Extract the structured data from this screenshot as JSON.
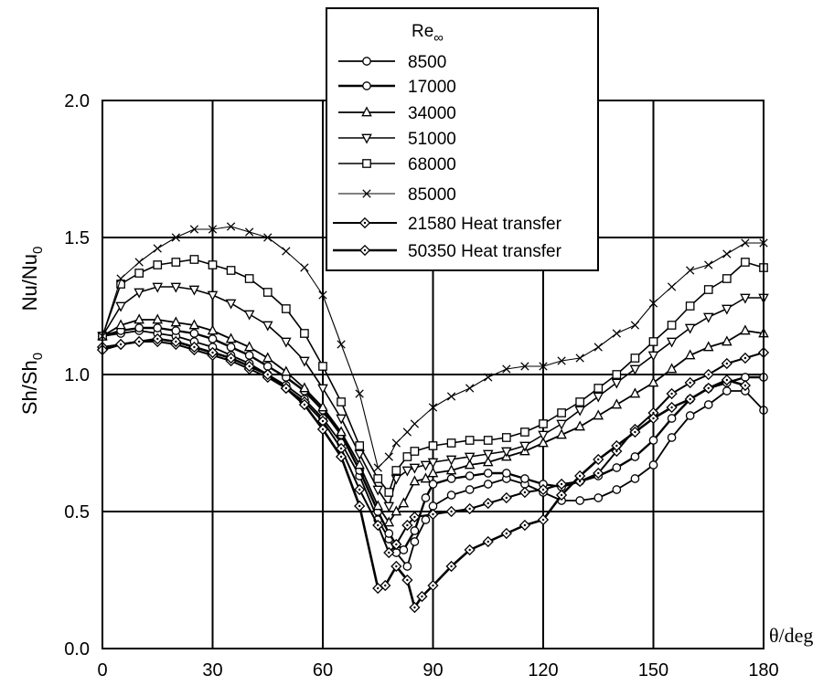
{
  "chart_data": {
    "type": "line",
    "xlabel": "θ/deg",
    "ylabel_left": "Sh/Sh",
    "ylabel_left_sub": "0",
    "ylabel_right": "Nu/Nu",
    "ylabel_right_sub": "0",
    "xlim": [
      0,
      180
    ],
    "ylim": [
      0,
      2
    ],
    "xticks": [
      0,
      30,
      60,
      90,
      120,
      150,
      180
    ],
    "xtick_labels": [
      "0",
      "30",
      "60",
      "90",
      "120",
      "150",
      "180"
    ],
    "yticks": [
      0,
      0.5,
      1.0,
      1.5,
      2.0
    ],
    "ytick_labels": [
      "0.0",
      "0.5",
      "1.0",
      "1.5",
      "2.0"
    ],
    "grid": true,
    "legend": {
      "placement": "top-center",
      "title": "Re",
      "title_sub": "∞"
    },
    "series": [
      {
        "name": "8500",
        "marker": "circle",
        "x": [
          0,
          5,
          10,
          15,
          20,
          25,
          30,
          35,
          40,
          45,
          50,
          55,
          60,
          65,
          70,
          75,
          78,
          80,
          83,
          85,
          88,
          90,
          95,
          100,
          105,
          110,
          115,
          120,
          125,
          130,
          135,
          140,
          145,
          150,
          155,
          160,
          165,
          170,
          175,
          180
        ],
        "y": [
          1.14,
          1.15,
          1.16,
          1.15,
          1.14,
          1.12,
          1.1,
          1.07,
          1.04,
          1.0,
          0.96,
          0.91,
          0.84,
          0.75,
          0.63,
          0.47,
          0.4,
          0.35,
          0.3,
          0.39,
          0.47,
          0.52,
          0.56,
          0.58,
          0.6,
          0.62,
          0.6,
          0.57,
          0.54,
          0.54,
          0.55,
          0.58,
          0.62,
          0.67,
          0.77,
          0.85,
          0.89,
          0.94,
          0.94,
          0.87
        ]
      },
      {
        "name": "17000",
        "marker": "circle",
        "x": [
          0,
          5,
          10,
          15,
          20,
          25,
          30,
          35,
          40,
          45,
          50,
          55,
          60,
          65,
          70,
          75,
          78,
          80,
          82,
          85,
          88,
          90,
          95,
          100,
          105,
          110,
          115,
          120,
          125,
          130,
          135,
          140,
          145,
          150,
          155,
          160,
          165,
          170,
          175,
          180
        ],
        "y": [
          1.14,
          1.16,
          1.17,
          1.17,
          1.16,
          1.15,
          1.13,
          1.1,
          1.07,
          1.03,
          0.99,
          0.94,
          0.87,
          0.78,
          0.65,
          0.5,
          0.42,
          0.38,
          0.36,
          0.43,
          0.55,
          0.6,
          0.62,
          0.63,
          0.64,
          0.64,
          0.62,
          0.6,
          0.59,
          0.61,
          0.63,
          0.66,
          0.7,
          0.76,
          0.84,
          0.91,
          0.95,
          0.97,
          0.99,
          0.99
        ]
      },
      {
        "name": "34000",
        "marker": "triangle-up",
        "x": [
          0,
          5,
          10,
          15,
          20,
          25,
          30,
          35,
          40,
          45,
          50,
          55,
          60,
          65,
          70,
          75,
          78,
          80,
          82,
          85,
          88,
          90,
          95,
          100,
          105,
          110,
          115,
          120,
          125,
          130,
          135,
          140,
          145,
          150,
          155,
          160,
          165,
          170,
          175,
          180
        ],
        "y": [
          1.14,
          1.18,
          1.2,
          1.2,
          1.19,
          1.18,
          1.16,
          1.13,
          1.1,
          1.06,
          1.01,
          0.95,
          0.88,
          0.79,
          0.67,
          0.52,
          0.46,
          0.5,
          0.53,
          0.61,
          0.62,
          0.64,
          0.65,
          0.67,
          0.68,
          0.7,
          0.72,
          0.75,
          0.78,
          0.81,
          0.85,
          0.89,
          0.93,
          0.97,
          1.02,
          1.07,
          1.1,
          1.12,
          1.16,
          1.15
        ]
      },
      {
        "name": "51000",
        "marker": "triangle-down",
        "x": [
          0,
          5,
          10,
          15,
          20,
          25,
          30,
          35,
          40,
          45,
          50,
          55,
          60,
          65,
          70,
          75,
          78,
          80,
          83,
          85,
          88,
          90,
          95,
          100,
          105,
          110,
          115,
          120,
          125,
          130,
          135,
          140,
          145,
          150,
          155,
          160,
          165,
          170,
          175,
          180
        ],
        "y": [
          1.14,
          1.25,
          1.3,
          1.32,
          1.32,
          1.31,
          1.29,
          1.26,
          1.22,
          1.18,
          1.12,
          1.05,
          0.95,
          0.84,
          0.71,
          0.58,
          0.52,
          0.62,
          0.65,
          0.66,
          0.67,
          0.68,
          0.69,
          0.7,
          0.71,
          0.72,
          0.74,
          0.78,
          0.82,
          0.87,
          0.92,
          0.97,
          1.02,
          1.07,
          1.12,
          1.17,
          1.21,
          1.24,
          1.28,
          1.28
        ]
      },
      {
        "name": "68000",
        "marker": "square",
        "x": [
          0,
          5,
          10,
          15,
          20,
          25,
          30,
          35,
          40,
          45,
          50,
          55,
          60,
          65,
          70,
          75,
          78,
          80,
          83,
          85,
          90,
          95,
          100,
          105,
          110,
          115,
          120,
          125,
          130,
          135,
          140,
          145,
          150,
          155,
          160,
          165,
          170,
          175,
          180
        ],
        "y": [
          1.14,
          1.33,
          1.37,
          1.4,
          1.41,
          1.42,
          1.4,
          1.38,
          1.35,
          1.3,
          1.24,
          1.15,
          1.03,
          0.9,
          0.74,
          0.62,
          0.57,
          0.65,
          0.7,
          0.72,
          0.74,
          0.75,
          0.76,
          0.76,
          0.77,
          0.79,
          0.82,
          0.86,
          0.9,
          0.95,
          1.0,
          1.06,
          1.12,
          1.18,
          1.25,
          1.31,
          1.35,
          1.41,
          1.39
        ]
      },
      {
        "name": "85000",
        "marker": "x",
        "x": [
          0,
          5,
          10,
          15,
          20,
          25,
          30,
          35,
          40,
          45,
          50,
          55,
          60,
          65,
          70,
          75,
          78,
          80,
          83,
          85,
          90,
          95,
          100,
          105,
          110,
          115,
          120,
          125,
          130,
          135,
          140,
          145,
          150,
          155,
          160,
          165,
          170,
          175,
          180
        ],
        "y": [
          1.14,
          1.35,
          1.41,
          1.46,
          1.5,
          1.53,
          1.53,
          1.54,
          1.52,
          1.5,
          1.45,
          1.39,
          1.29,
          1.11,
          0.93,
          0.66,
          0.7,
          0.75,
          0.79,
          0.82,
          0.88,
          0.92,
          0.95,
          0.99,
          1.02,
          1.03,
          1.03,
          1.05,
          1.06,
          1.1,
          1.15,
          1.18,
          1.26,
          1.32,
          1.38,
          1.4,
          1.44,
          1.48,
          1.48
        ]
      },
      {
        "name": "21580 Heat transfer",
        "marker": "diamond",
        "x": [
          0,
          5,
          10,
          15,
          20,
          25,
          30,
          35,
          40,
          45,
          50,
          55,
          60,
          65,
          70,
          75,
          78,
          80,
          83,
          85,
          90,
          95,
          100,
          105,
          110,
          115,
          120,
          125,
          130,
          135,
          140,
          145,
          150,
          155,
          160,
          165,
          170,
          175,
          180
        ],
        "y": [
          1.1,
          1.11,
          1.12,
          1.12,
          1.11,
          1.09,
          1.07,
          1.05,
          1.02,
          0.99,
          0.95,
          0.9,
          0.83,
          0.73,
          0.58,
          0.45,
          0.35,
          0.38,
          0.45,
          0.48,
          0.49,
          0.5,
          0.51,
          0.53,
          0.55,
          0.57,
          0.58,
          0.6,
          0.61,
          0.64,
          0.72,
          0.8,
          0.86,
          0.93,
          0.97,
          1.0,
          1.04,
          1.06,
          1.08
        ]
      },
      {
        "name": "50350 Heat transfer",
        "marker": "diamond",
        "x": [
          0,
          5,
          10,
          15,
          20,
          25,
          30,
          35,
          40,
          45,
          50,
          55,
          60,
          65,
          70,
          75,
          77,
          80,
          83,
          85,
          87,
          90,
          95,
          100,
          105,
          110,
          115,
          120,
          125,
          130,
          135,
          140,
          145,
          150,
          155,
          160,
          165,
          170,
          175
        ],
        "y": [
          1.09,
          1.11,
          1.12,
          1.13,
          1.12,
          1.1,
          1.08,
          1.06,
          1.03,
          1.0,
          0.95,
          0.89,
          0.8,
          0.7,
          0.52,
          0.22,
          0.23,
          0.3,
          0.25,
          0.15,
          0.19,
          0.23,
          0.3,
          0.36,
          0.39,
          0.42,
          0.45,
          0.47,
          0.56,
          0.63,
          0.69,
          0.74,
          0.79,
          0.84,
          0.88,
          0.91,
          0.95,
          0.98,
          0.96
        ]
      }
    ]
  }
}
